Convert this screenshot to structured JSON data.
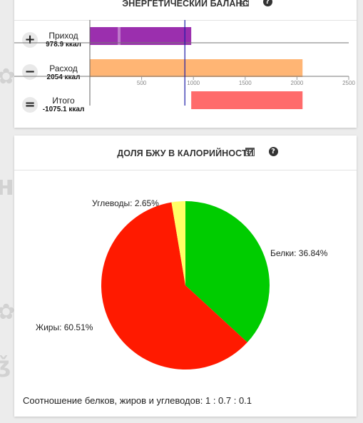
{
  "balance_card": {
    "title": "ЭНЕРГЕТИЧЕСКИЙ БАЛАНС",
    "rows": [
      {
        "sign": "+",
        "label": "Приход",
        "value_text": "978.9 ккал",
        "value": 978.9,
        "color": "#9b2fae"
      },
      {
        "sign": "−",
        "label": "Расход",
        "value_text": "2054 ккал",
        "value": 2054,
        "color": "#ffb574"
      },
      {
        "sign": "=",
        "label": "Итого",
        "value_text": "-1075.1 ккал",
        "value": -1075.1,
        "color": "#ff6b6b"
      }
    ],
    "axis": {
      "min": 0,
      "max": 2500,
      "ticks": [
        500,
        1000,
        1500,
        2000,
        2500
      ],
      "reference": 1000
    }
  },
  "macro_card": {
    "title": "ДОЛЯ БЖУ В КАЛОРИЙНОСТИ",
    "ratio_text": "Соотношение белков, жиров и углеводов: 1 : 0.7 : 0.1"
  },
  "chart_data": {
    "type": "pie",
    "categories": [
      "Белки",
      "Жиры",
      "Углеводы"
    ],
    "values": [
      36.84,
      60.51,
      2.65
    ],
    "labels": [
      "Белки: 36.84%",
      "Жиры: 60.51%",
      "Углеводы: 2.65%"
    ],
    "colors": [
      "#00cc00",
      "#ff1a00",
      "#ffff66"
    ]
  }
}
